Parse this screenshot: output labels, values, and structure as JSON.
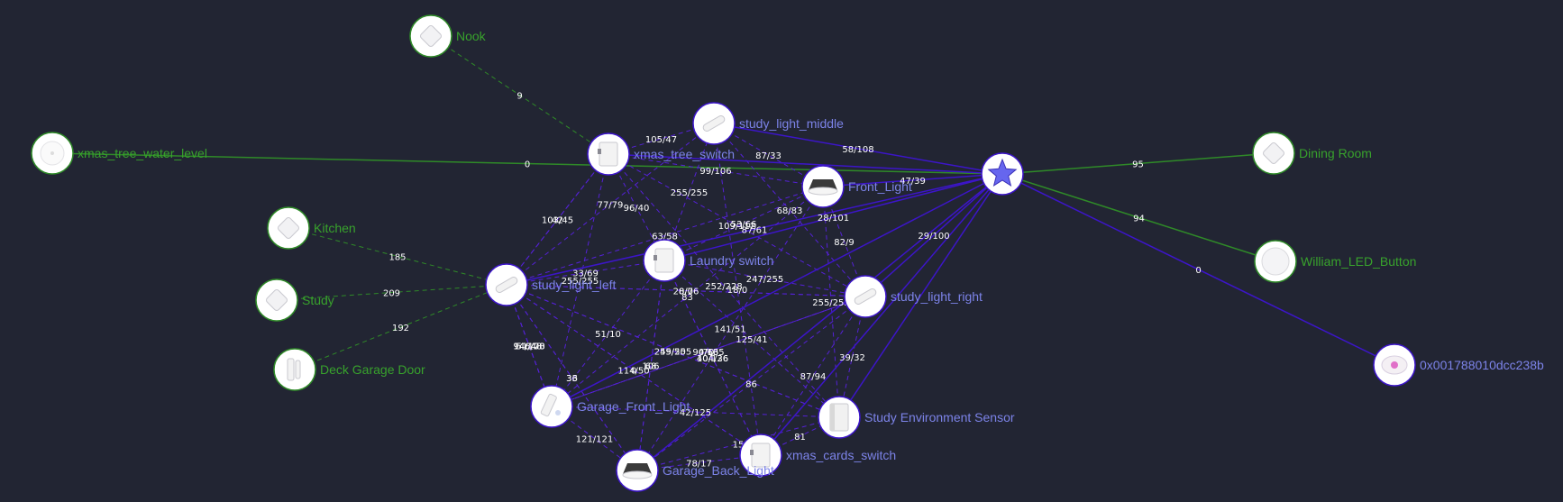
{
  "colors": {
    "background": "#222533",
    "router_line": "#3c15c9",
    "mesh_line": "#5421d6",
    "end_device_line": "#2f8a28",
    "router_label": "#7c83e8",
    "end_device_label": "#38a22c",
    "coordinator_star": "#6666ee"
  },
  "coordinator": {
    "icon": "star-icon"
  },
  "nodes": [
    {
      "id": "nook",
      "label": "Nook",
      "kind": "end_device",
      "icon": "motion-sensor-icon"
    },
    {
      "id": "xmas_tree_water_level",
      "label": "xmas_tree_water_level",
      "kind": "end_device",
      "icon": "leak-sensor-icon"
    },
    {
      "id": "kitchen",
      "label": "Kitchen",
      "kind": "end_device",
      "icon": "motion-sensor-icon"
    },
    {
      "id": "study",
      "label": "Study",
      "kind": "end_device",
      "icon": "motion-sensor-icon"
    },
    {
      "id": "deck_garage_door",
      "label": "Deck Garage Door",
      "kind": "end_device",
      "icon": "door-sensor-icon"
    },
    {
      "id": "dining_room",
      "label": "Dining Room",
      "kind": "end_device",
      "icon": "motion-sensor-icon"
    },
    {
      "id": "william_led_button",
      "label": "William_LED_Button",
      "kind": "end_device",
      "icon": "button-icon"
    },
    {
      "id": "remote_0x",
      "label": "0x001788010dcc238b",
      "kind": "router",
      "icon": "remote-icon"
    },
    {
      "id": "study_light_middle",
      "label": "study_light_middle",
      "kind": "router",
      "icon": "light-strip-icon"
    },
    {
      "id": "xmas_tree_switch",
      "label": "xmas_tree_switch",
      "kind": "router",
      "icon": "smart-plug-icon"
    },
    {
      "id": "front_light",
      "label": "Front_Light",
      "kind": "router",
      "icon": "downlight-icon"
    },
    {
      "id": "laundry_switch",
      "label": "Laundry switch",
      "kind": "router",
      "icon": "smart-plug-icon"
    },
    {
      "id": "study_light_left",
      "label": "study_light_left",
      "kind": "router",
      "icon": "light-strip-icon"
    },
    {
      "id": "study_light_right",
      "label": "study_light_right",
      "kind": "router",
      "icon": "light-strip-icon"
    },
    {
      "id": "garage_front_light",
      "label": "Garage_Front_Light",
      "kind": "router",
      "icon": "outdoor-light-icon"
    },
    {
      "id": "study_env_sensor",
      "label": "Study Environment Sensor",
      "kind": "router",
      "icon": "environment-sensor-icon"
    },
    {
      "id": "xmas_cards_switch",
      "label": "xmas_cards_switch",
      "kind": "router",
      "icon": "smart-plug-icon"
    },
    {
      "id": "garage_back_light",
      "label": "Garage_Back_Light",
      "kind": "router",
      "icon": "downlight-icon"
    }
  ],
  "links": [
    {
      "from": "nook",
      "to": "xmas_tree_switch",
      "lqi": "9",
      "style": "dashed"
    },
    {
      "from": "xmas_tree_water_level",
      "to": "coordinator",
      "lqi": "0",
      "style": "solid"
    },
    {
      "from": "kitchen",
      "to": "study_light_left",
      "lqi": "185",
      "style": "dashed"
    },
    {
      "from": "study",
      "to": "study_light_left",
      "lqi": "209",
      "style": "dashed"
    },
    {
      "from": "deck_garage_door",
      "to": "study_light_left",
      "lqi": "192",
      "style": "dashed"
    },
    {
      "from": "coordinator",
      "to": "dining_room",
      "lqi": "95",
      "style": "solid"
    },
    {
      "from": "coordinator",
      "to": "william_led_button",
      "lqi": "94",
      "style": "solid"
    },
    {
      "from": "coordinator",
      "to": "remote_0x",
      "lqi": "0",
      "style": "solid"
    },
    {
      "from": "study_light_middle",
      "to": "coordinator",
      "lqi": "58/108",
      "style": "solid"
    },
    {
      "from": "xmas_tree_switch",
      "to": "study_light_middle",
      "lqi": "105/47",
      "style": "dashed"
    },
    {
      "from": "study_light_middle",
      "to": "front_light",
      "lqi": "87/33",
      "style": "dashed"
    },
    {
      "from": "study_light_middle",
      "to": "study_light_right",
      "lqi": "68/83",
      "style": "dashed"
    },
    {
      "from": "xmas_tree_switch",
      "to": "front_light",
      "lqi": "99/106",
      "style": "dashed"
    },
    {
      "from": "front_light",
      "to": "coordinator",
      "lqi": "47/39",
      "style": "solid"
    },
    {
      "from": "xmas_tree_switch",
      "to": "laundry_switch",
      "lqi": "96/40",
      "style": "dashed"
    },
    {
      "from": "xmas_tree_switch",
      "to": "study_light_left",
      "lqi": "103/45",
      "style": "dashed"
    },
    {
      "from": "xmas_tree_switch",
      "to": "garage_front_light",
      "lqi": "255/255",
      "style": "dashed"
    },
    {
      "from": "xmas_tree_switch",
      "to": "study_light_right",
      "lqi": "109/112",
      "style": "dashed"
    },
    {
      "from": "laundry_switch",
      "to": "study_light_middle",
      "lqi": "255/255",
      "style": "dashed"
    },
    {
      "from": "laundry_switch",
      "to": "front_light",
      "lqi": "53/66",
      "style": "dashed"
    },
    {
      "from": "laundry_switch",
      "to": "coordinator",
      "lqi": "28/101",
      "style": "solid"
    },
    {
      "from": "study_light_left",
      "to": "laundry_switch",
      "lqi": "33/69",
      "style": "dashed"
    },
    {
      "from": "study_light_left",
      "to": "front_light",
      "lqi": "63/58",
      "style": "dashed"
    },
    {
      "from": "study_light_left",
      "to": "coordinator",
      "lqi": "87/61",
      "style": "solid"
    },
    {
      "from": "study_light_left",
      "to": "study_light_right",
      "lqi": "28/76",
      "style": "dashed"
    },
    {
      "from": "front_light",
      "to": "study_light_right",
      "lqi": "82/9",
      "style": "dashed"
    },
    {
      "from": "study_light_left",
      "to": "xmas_cards_switch",
      "lqi": "114/50",
      "style": "dashed"
    },
    {
      "from": "study_light_left",
      "to": "garage_back_light",
      "lqi": "36",
      "style": "dashed"
    },
    {
      "from": "laundry_switch",
      "to": "garage_front_light",
      "lqi": "51/10",
      "style": "dashed"
    },
    {
      "from": "laundry_switch",
      "to": "study_light_right",
      "lqi": "247/255",
      "style": "dashed"
    },
    {
      "from": "laundry_switch",
      "to": "study_env_sensor",
      "lqi": "125/41",
      "style": "dashed"
    },
    {
      "from": "study_light_left",
      "to": "study_env_sensor",
      "lqi": "255/255",
      "style": "dashed"
    },
    {
      "from": "laundry_switch",
      "to": "xmas_cards_switch",
      "lqi": "40/126",
      "style": "dashed"
    },
    {
      "from": "study_light_left",
      "to": "garage_front_light",
      "lqi": "94/100",
      "style": "dashed"
    },
    {
      "from": "study_light_left",
      "to": "study_light_middle",
      "lqi": "77/79",
      "style": "dashed"
    },
    {
      "from": "front_light",
      "to": "garage_front_light",
      "lqi": "83",
      "style": "dashed"
    },
    {
      "from": "study_light_middle",
      "to": "xmas_cards_switch",
      "lqi": "18/0",
      "style": "dashed"
    },
    {
      "from": "study_light_right",
      "to": "coordinator",
      "lqi": "29/100",
      "style": "solid"
    },
    {
      "from": "garage_front_light",
      "to": "study_light_right",
      "lqi": "0/63",
      "style": "dashed"
    },
    {
      "from": "study_light_right",
      "to": "garage_back_light",
      "lqi": "86",
      "style": "dashed"
    },
    {
      "from": "study_light_left",
      "to": "xmas_tree_switch",
      "lqi": "42",
      "style": "dashed"
    },
    {
      "from": "study_light_left",
      "to": "study_light_right",
      "lqi": "0/0",
      "style": "dashed"
    },
    {
      "from": "laundry_switch",
      "to": "garage_back_light",
      "lqi": "106",
      "style": "dashed"
    },
    {
      "from": "study_light_right",
      "to": "xmas_cards_switch",
      "lqi": "87/94",
      "style": "dashed"
    },
    {
      "from": "study_light_right",
      "to": "study_env_sensor",
      "lqi": "39/32",
      "style": "dashed"
    },
    {
      "from": "study_light_left",
      "to": "garage_back_light",
      "lqi": "33",
      "style": "dashed"
    },
    {
      "from": "study_light_left",
      "to": "garage_front_light",
      "lqi": "146/78",
      "style": "dashed"
    },
    {
      "from": "xmas_tree_switch",
      "to": "study_env_sensor",
      "lqi": "252/228",
      "style": "dashed"
    },
    {
      "from": "laundry_switch",
      "to": "xmas_cards_switch",
      "lqi": "104/36",
      "style": "dashed"
    },
    {
      "from": "study_light_left",
      "to": "study_env_sensor",
      "lqi": "49/50",
      "style": "dashed"
    },
    {
      "from": "front_light",
      "to": "study_env_sensor",
      "lqi": "255/255",
      "style": "dashed"
    },
    {
      "from": "study_light_left",
      "to": "garage_front_light",
      "lqi": "51/48",
      "style": "dashed"
    },
    {
      "from": "laundry_switch",
      "to": "garage_back_light",
      "lqi": "68",
      "style": "dashed"
    },
    {
      "from": "garage_front_light",
      "to": "study_light_right",
      "lqi": "94/165",
      "style": "dashed"
    },
    {
      "from": "study_light_right",
      "to": "garage_front_light",
      "lqi": "70",
      "style": "dashed"
    },
    {
      "from": "front_light",
      "to": "garage_back_light",
      "lqi": "141/51",
      "style": "dashed"
    },
    {
      "from": "garage_front_light",
      "to": "study_env_sensor",
      "lqi": "42/125",
      "style": "dashed"
    },
    {
      "from": "garage_front_light",
      "to": "garage_back_light",
      "lqi": "121/121",
      "style": "dashed"
    },
    {
      "from": "study_light_left",
      "to": "xmas_cards_switch",
      "lqi": "0",
      "style": "dashed"
    },
    {
      "from": "garage_back_light",
      "to": "xmas_cards_switch",
      "lqi": "78/17",
      "style": "dashed"
    },
    {
      "from": "xmas_cards_switch",
      "to": "study_env_sensor",
      "lqi": "81",
      "style": "dashed"
    },
    {
      "from": "garage_back_light",
      "to": "study_env_sensor",
      "lqi": "15",
      "style": "dashed"
    },
    {
      "from": "garage_front_light",
      "to": "coordinator",
      "lqi": "",
      "style": "solid"
    },
    {
      "from": "xmas_cards_switch",
      "to": "coordinator",
      "lqi": "",
      "style": "solid"
    },
    {
      "from": "study_env_sensor",
      "to": "coordinator",
      "lqi": "",
      "style": "solid"
    },
    {
      "from": "garage_back_light",
      "to": "coordinator",
      "lqi": "",
      "style": "solid"
    },
    {
      "from": "xmas_tree_switch",
      "to": "coordinator",
      "lqi": "",
      "style": "solid"
    }
  ]
}
